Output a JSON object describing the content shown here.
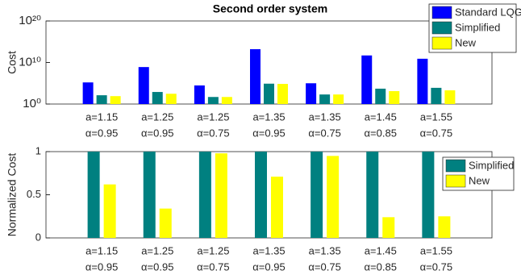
{
  "chart_data": [
    {
      "type": "bar",
      "title": "Second order system",
      "y_label": "Cost",
      "log_scale": true,
      "categories": [
        [
          "a=1.15",
          "α=0.95"
        ],
        [
          "a=1.25",
          "α=0.95"
        ],
        [
          "a=1.25",
          "α=0.75"
        ],
        [
          "a=1.35",
          "α=0.95"
        ],
        [
          "a=1.35",
          "α=0.75"
        ],
        [
          "a=1.45",
          "α=0.85"
        ],
        [
          "a=1.55",
          "α=0.75"
        ]
      ],
      "series": [
        {
          "name": "Standard LQG",
          "color": "#0000ff",
          "values": [
            160000,
            800000000,
            30000,
            16000000000000,
            100000,
            500000000000,
            80000000000
          ]
        },
        {
          "name": "Simplified",
          "color": "#008080",
          "values": [
            130,
            800,
            50,
            80000,
            200,
            5000,
            8000
          ]
        },
        {
          "name": "New",
          "color": "#ffff00",
          "values": [
            80,
            300,
            50,
            70000,
            200,
            1300,
            2000
          ]
        }
      ],
      "ylim": [
        1,
        100000000000000000000
      ],
      "yticks": [
        {
          "value": 1,
          "label": "10⁰"
        },
        {
          "value": 10000000000,
          "label": "10¹⁰"
        },
        {
          "value": 100000000000000000000,
          "label": "10²⁰"
        }
      ],
      "legend": "northeast"
    },
    {
      "type": "bar",
      "y_label": "Normalized Cost",
      "log_scale": false,
      "categories": [
        [
          "a=1.15",
          "α=0.95"
        ],
        [
          "a=1.25",
          "α=0.95"
        ],
        [
          "a=1.25",
          "α=0.75"
        ],
        [
          "a=1.35",
          "α=0.95"
        ],
        [
          "a=1.35",
          "α=0.75"
        ],
        [
          "a=1.45",
          "α=0.85"
        ],
        [
          "a=1.55",
          "α=0.75"
        ]
      ],
      "series": [
        {
          "name": "Simplified",
          "color": "#008080",
          "values": [
            1,
            1,
            1,
            1,
            1,
            1,
            1
          ]
        },
        {
          "name": "New",
          "color": "#ffff00",
          "values": [
            0.62,
            0.34,
            0.98,
            0.71,
            0.95,
            0.24,
            0.25
          ]
        }
      ],
      "ylim": [
        0,
        1
      ],
      "yticks": [
        0,
        0.5,
        1
      ],
      "legend": "northeast"
    }
  ]
}
